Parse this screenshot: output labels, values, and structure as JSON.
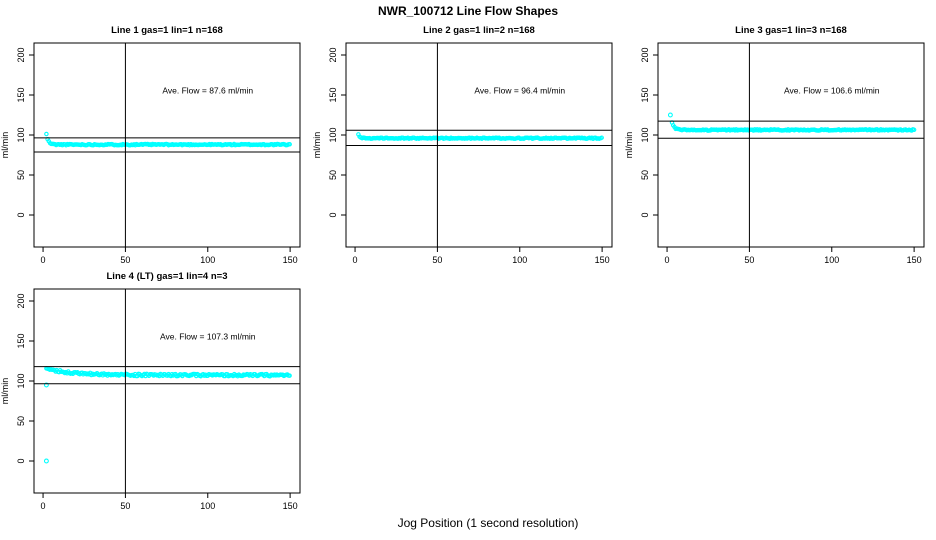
{
  "figure": {
    "title": "NWR_100712  Line Flow Shapes",
    "xlabel": "Jog Position (1 second resolution)",
    "point_color": "#00FFFF",
    "axis_color": "#000000",
    "background_color": "#FFFFFF"
  },
  "chart_data": [
    {
      "type": "scatter",
      "title": "Line 1 gas=1 lin=1 n=168",
      "annotation": "Ave. Flow =  87.6  ml/min",
      "annotation_xy": [
        100,
        152
      ],
      "ave_flow_ml_min": 87.6,
      "n": 168,
      "ylabel": "ml/min",
      "x_ticks": [
        0,
        50,
        100,
        150
      ],
      "y_ticks": [
        0,
        50,
        100,
        150,
        200
      ],
      "xlim": [
        -5.5,
        156
      ],
      "ylim": [
        -40,
        215
      ],
      "vline_x": 50,
      "ref_lines": [
        96.4,
        78.8
      ],
      "band": {
        "x_start": 2,
        "x_end": 150,
        "start": 101,
        "settle": 88,
        "tau": 1.2,
        "jitter": 0.75,
        "step": 0.75,
        "seed": 11
      },
      "outliers": []
    },
    {
      "type": "scatter",
      "title": "Line 2 gas=1 lin=2 n=168",
      "annotation": "Ave. Flow =  96.4  ml/min",
      "annotation_xy": [
        100,
        152
      ],
      "ave_flow_ml_min": 96.4,
      "n": 168,
      "ylabel": "ml/min",
      "x_ticks": [
        0,
        50,
        100,
        150
      ],
      "y_ticks": [
        0,
        50,
        100,
        150,
        200
      ],
      "xlim": [
        -5.5,
        156
      ],
      "ylim": [
        -40,
        215
      ],
      "vline_x": 50,
      "ref_lines": [
        106.0,
        86.8
      ],
      "band": {
        "x_start": 2,
        "x_end": 150,
        "start": 101,
        "settle": 96,
        "tau": 1.0,
        "jitter": 0.7,
        "step": 0.75,
        "seed": 22
      },
      "outliers": []
    },
    {
      "type": "scatter",
      "title": "Line 3 gas=1 lin=3 n=168",
      "annotation": "Ave. Flow =  106.6  ml/min",
      "annotation_xy": [
        100,
        152
      ],
      "ave_flow_ml_min": 106.6,
      "n": 168,
      "ylabel": "ml/min",
      "x_ticks": [
        0,
        50,
        100,
        150
      ],
      "y_ticks": [
        0,
        50,
        100,
        150,
        200
      ],
      "xlim": [
        -5.5,
        156
      ],
      "ylim": [
        -40,
        215
      ],
      "vline_x": 50,
      "ref_lines": [
        117.3,
        95.9
      ],
      "band": {
        "x_start": 3,
        "x_end": 150,
        "start": 115,
        "settle": 106.3,
        "tau": 1.5,
        "jitter": 0.75,
        "step": 0.75,
        "seed": 33
      },
      "outliers": [
        [
          2,
          125
        ]
      ]
    },
    {
      "type": "scatter",
      "title": "Line 4 (LT) gas=1 lin=4 n=3",
      "annotation": "Ave. Flow =  107.3  ml/min",
      "annotation_xy": [
        100,
        152
      ],
      "ave_flow_ml_min": 107.3,
      "n": 3,
      "ylabel": "ml/min",
      "x_ticks": [
        0,
        50,
        100,
        150
      ],
      "y_ticks": [
        0,
        50,
        100,
        150,
        200
      ],
      "xlim": [
        -5.5,
        156
      ],
      "ylim": [
        -40,
        215
      ],
      "vline_x": 50,
      "ref_lines": [
        118.0,
        96.6
      ],
      "band": {
        "x_start": 2,
        "x_end": 150,
        "start": 115.5,
        "settle": 107.3,
        "tau": 16,
        "jitter": 1.4,
        "step": 0.7,
        "seed": 44
      },
      "outliers": [
        [
          2,
          95
        ],
        [
          2,
          0
        ]
      ]
    }
  ]
}
